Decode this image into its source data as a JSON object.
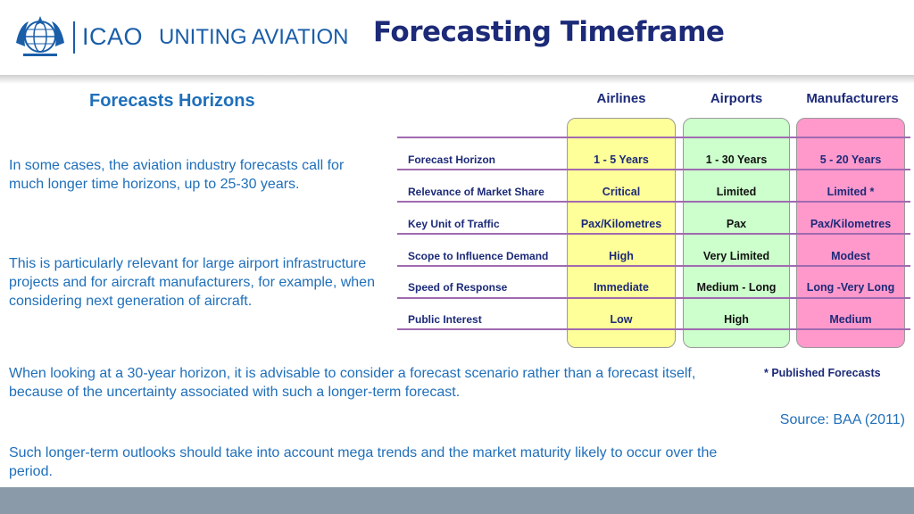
{
  "header": {
    "logo_text": "ICAO",
    "slogan": "UNITING AVIATION",
    "title": "Forecasting Timeframe"
  },
  "left": {
    "subtitle": "Forecasts Horizons",
    "paragraph1": "In some cases, the aviation industry forecasts call for much longer time horizons, up to 25-30 years.",
    "paragraph2": "This is particularly relevant for large airport infrastructure projects and for aircraft manufacturers, for example, when considering next generation of aircraft.",
    "paragraph3": "When looking at a 30-year horizon, it is advisable to consider a forecast scenario rather than a forecast itself, because of the uncertainty associated with such a longer-term forecast.",
    "paragraph4": "Such longer-term outlooks should take into account mega trends and the market maturity likely to occur over the period."
  },
  "table": {
    "columns": [
      "Airlines",
      "Airports",
      "Manufacturers"
    ],
    "rows": [
      {
        "label": "Forecast Horizon",
        "airlines": "1 - 5 Years",
        "airports": "1 - 30 Years",
        "manufacturers": "5 - 20 Years"
      },
      {
        "label": "Relevance of Market Share",
        "airlines": "Critical",
        "airports": "Limited",
        "manufacturers": "Limited *"
      },
      {
        "label": "Key Unit of Traffic",
        "airlines": "Pax/Kilometres",
        "airports": "Pax",
        "manufacturers": "Pax/Kilometres"
      },
      {
        "label": "Scope to Influence Demand",
        "airlines": "High",
        "airports": "Very Limited",
        "manufacturers": "Modest"
      },
      {
        "label": "Speed of Response",
        "airlines": "Immediate",
        "airports": "Medium - Long",
        "manufacturers": "Long -Very Long"
      },
      {
        "label": "Public Interest",
        "airlines": "Low",
        "airports": "High",
        "manufacturers": "Medium"
      }
    ],
    "footnote": "* Published Forecasts",
    "column_colors": {
      "airlines": "#ffff99",
      "airports": "#ccffcc",
      "manufacturers": "#ff99cc"
    }
  },
  "source": "Source: BAA (2011)",
  "colors": {
    "title": "#1c2a78",
    "text": "#1f6fba",
    "footer": "#8a9aa8"
  }
}
